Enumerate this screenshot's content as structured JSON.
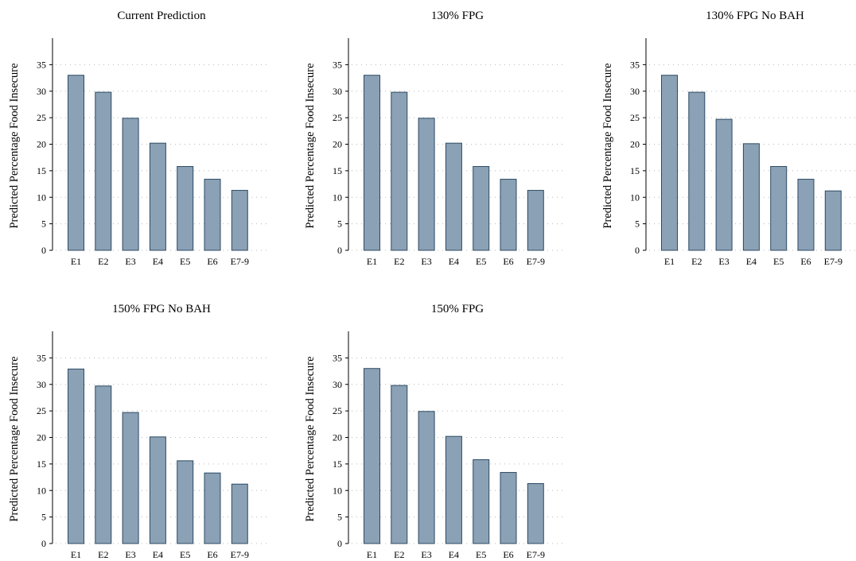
{
  "colors": {
    "bar_fill": "#8ba1b5",
    "bar_stroke": "#2c4a63",
    "axis": "#000000",
    "grid": "#b8b8b8"
  },
  "chart_data": [
    {
      "type": "bar",
      "title": "Current Prediction",
      "ylabel": "Predicted Percentage Food Insecure",
      "xlabel": "",
      "categories": [
        "E1",
        "E2",
        "E3",
        "E4",
        "E5",
        "E6",
        "E7-9"
      ],
      "values": [
        33.0,
        29.8,
        24.9,
        20.2,
        15.8,
        13.4,
        11.3
      ],
      "ylim": [
        0,
        40
      ],
      "yticks": [
        0,
        5,
        10,
        15,
        20,
        25,
        30,
        35
      ],
      "grid": "horizontal dotted"
    },
    {
      "type": "bar",
      "title": "130% FPG",
      "ylabel": "Predicted Percentage Food Insecure",
      "xlabel": "",
      "categories": [
        "E1",
        "E2",
        "E3",
        "E4",
        "E5",
        "E6",
        "E7-9"
      ],
      "values": [
        33.0,
        29.8,
        24.9,
        20.2,
        15.8,
        13.4,
        11.3
      ],
      "ylim": [
        0,
        40
      ],
      "yticks": [
        0,
        5,
        10,
        15,
        20,
        25,
        30,
        35
      ],
      "grid": "horizontal dotted"
    },
    {
      "type": "bar",
      "title": "130% FPG No BAH",
      "ylabel": "Predicted Percentage Food Insecure",
      "xlabel": "",
      "categories": [
        "E1",
        "E2",
        "E3",
        "E4",
        "E5",
        "E6",
        "E7-9"
      ],
      "values": [
        33.0,
        29.8,
        24.7,
        20.1,
        15.8,
        13.4,
        11.2
      ],
      "ylim": [
        0,
        40
      ],
      "yticks": [
        0,
        5,
        10,
        15,
        20,
        25,
        30,
        35
      ],
      "grid": "horizontal dotted"
    },
    {
      "type": "bar",
      "title": "150% FPG No BAH",
      "ylabel": "Predicted Percentage Food Insecure",
      "xlabel": "",
      "categories": [
        "E1",
        "E2",
        "E3",
        "E4",
        "E5",
        "E6",
        "E7-9"
      ],
      "values": [
        32.9,
        29.7,
        24.7,
        20.1,
        15.6,
        13.3,
        11.2
      ],
      "ylim": [
        0,
        40
      ],
      "yticks": [
        0,
        5,
        10,
        15,
        20,
        25,
        30,
        35
      ],
      "grid": "horizontal dotted"
    },
    {
      "type": "bar",
      "title": "150% FPG",
      "ylabel": "Predicted Percentage Food Insecure",
      "xlabel": "",
      "categories": [
        "E1",
        "E2",
        "E3",
        "E4",
        "E5",
        "E6",
        "E7-9"
      ],
      "values": [
        33.0,
        29.8,
        24.9,
        20.2,
        15.8,
        13.4,
        11.3
      ],
      "ylim": [
        0,
        40
      ],
      "yticks": [
        0,
        5,
        10,
        15,
        20,
        25,
        30,
        35
      ],
      "grid": "horizontal dotted"
    }
  ]
}
